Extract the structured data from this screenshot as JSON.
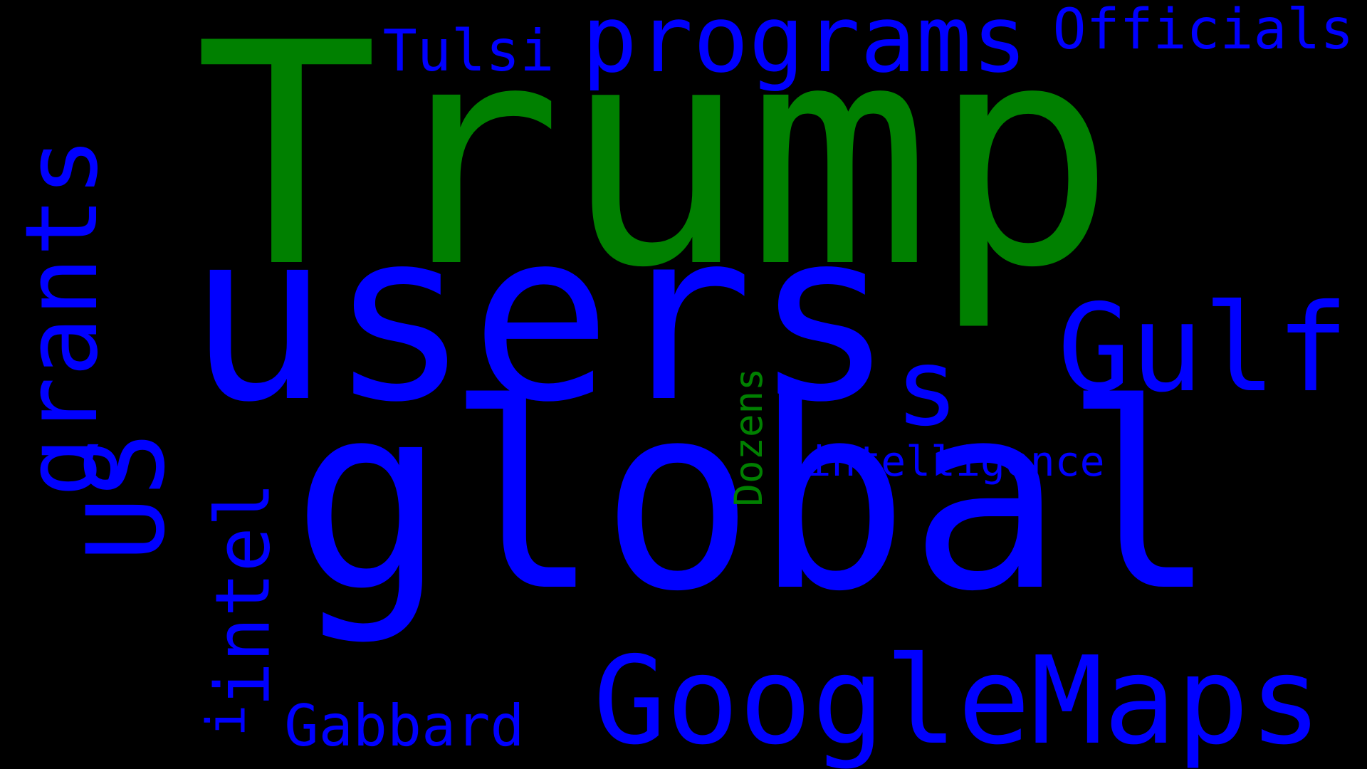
{
  "colors": {
    "background": "#000000",
    "green": "#008000",
    "blue": "#0000ff"
  },
  "words": [
    {
      "key": "trump",
      "text": "Trump",
      "color": "green"
    },
    {
      "key": "users",
      "text": "users",
      "color": "blue"
    },
    {
      "key": "global",
      "text": "global",
      "color": "blue"
    },
    {
      "key": "googlemaps",
      "text": "GoogleMaps",
      "color": "blue"
    },
    {
      "key": "programs",
      "text": "programs",
      "color": "blue"
    },
    {
      "key": "gulf",
      "text": "Gulf",
      "color": "blue"
    },
    {
      "key": "grants",
      "text": "grants",
      "color": "blue"
    },
    {
      "key": "officials",
      "text": "Officials",
      "color": "blue"
    },
    {
      "key": "tulsi",
      "text": "Tulsi",
      "color": "blue"
    },
    {
      "key": "us",
      "text": "US",
      "color": "blue"
    },
    {
      "key": "intel",
      "text": "intel",
      "color": "blue"
    },
    {
      "key": "s",
      "text": "s",
      "color": "blue"
    },
    {
      "key": "intelligence",
      "text": "intelligence",
      "color": "blue"
    },
    {
      "key": "dozens",
      "text": "Dozens",
      "color": "green"
    },
    {
      "key": "gabbard",
      "text": "Gabbard",
      "color": "blue"
    },
    {
      "key": "i",
      "text": "i",
      "color": "blue"
    }
  ]
}
